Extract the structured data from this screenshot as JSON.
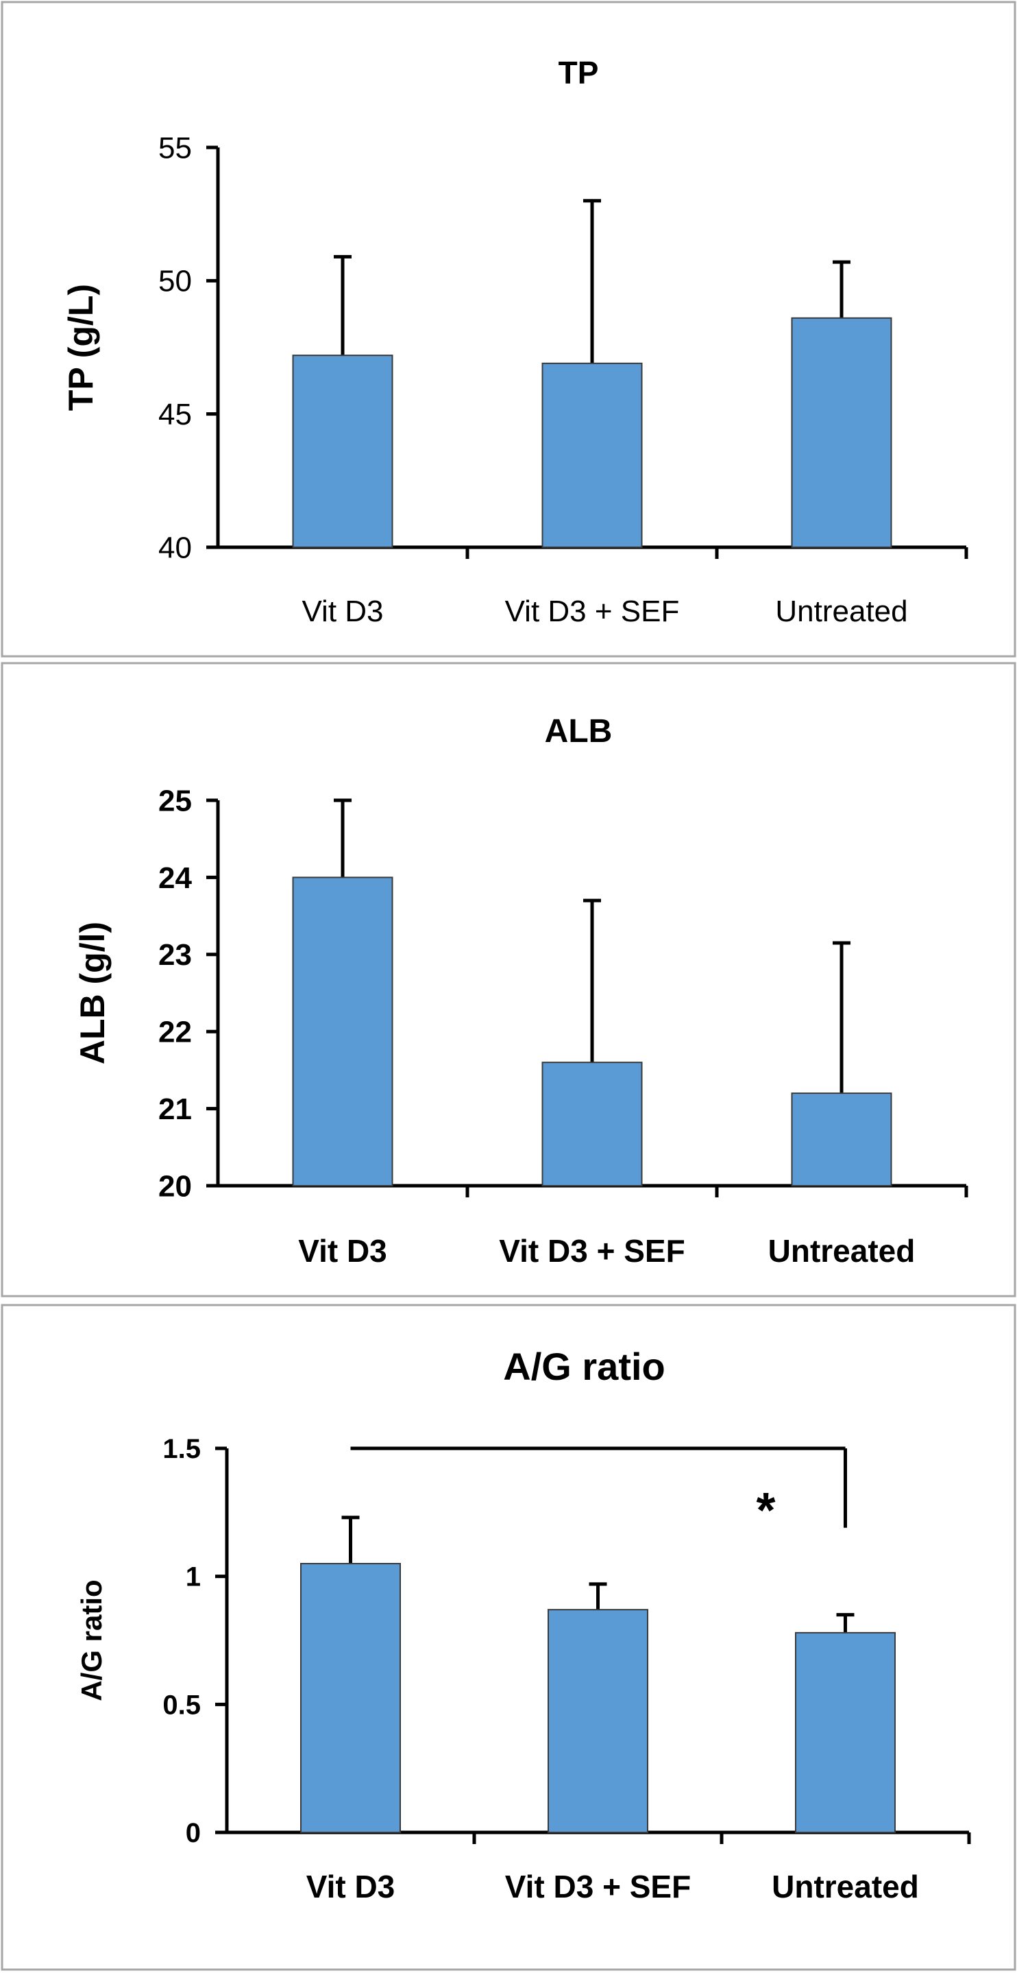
{
  "colors": {
    "bar": "#5b9bd5",
    "axis": "#000000",
    "frame": "#a6a6a6"
  },
  "chart_data": [
    {
      "type": "bar",
      "title": "TP",
      "ylabel": "TP (g/L)",
      "xlabel": "",
      "categories": [
        "Vit D3",
        "Vit D3 + SEF",
        "Untreated"
      ],
      "values": [
        47.2,
        46.9,
        48.6
      ],
      "error_upper": [
        50.9,
        53.0,
        50.7
      ],
      "ylim": [
        40,
        55
      ],
      "yticks": [
        40,
        45,
        50,
        55
      ],
      "ytick_labels": [
        "40",
        "45",
        "50",
        "55"
      ],
      "bold_ticks": false,
      "significance": null
    },
    {
      "type": "bar",
      "title": "ALB",
      "ylabel": "ALB (g/l)",
      "xlabel": "",
      "categories": [
        "Vit D3",
        "Vit D3 + SEF",
        "Untreated"
      ],
      "values": [
        24.0,
        21.6,
        21.2
      ],
      "error_upper": [
        25.0,
        23.7,
        23.15
      ],
      "ylim": [
        20,
        25
      ],
      "yticks": [
        20,
        21,
        22,
        23,
        24,
        25
      ],
      "ytick_labels": [
        "20",
        "21",
        "22",
        "23",
        "24",
        "25"
      ],
      "bold_ticks": true,
      "significance": null
    },
    {
      "type": "bar",
      "title": "A/G ratio",
      "ylabel": "A/G ratio",
      "xlabel": "",
      "categories": [
        "Vit D3",
        "Vit D3 + SEF",
        "Untreated"
      ],
      "values": [
        1.05,
        0.87,
        0.78
      ],
      "error_upper": [
        1.23,
        0.97,
        0.85
      ],
      "ylim": [
        0,
        1.5
      ],
      "yticks": [
        0,
        0.5,
        1,
        1.5
      ],
      "ytick_labels": [
        "0",
        "0.5",
        "1",
        "1.5"
      ],
      "bold_ticks": true,
      "significance": {
        "from": "Vit D3",
        "to": "Untreated",
        "level": 1.5,
        "drop_to": 1.19,
        "label": "*"
      }
    }
  ]
}
